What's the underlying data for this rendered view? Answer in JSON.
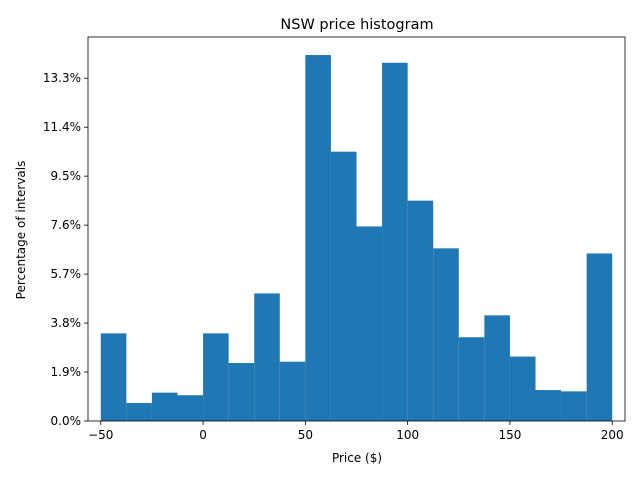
{
  "chart_data": {
    "type": "bar",
    "title": "NSW price histogram",
    "xlabel": "Price ($)",
    "ylabel": "Percentage of intervals",
    "bin_edges": [
      -50,
      -37.5,
      -25,
      -12.5,
      0,
      12.5,
      25,
      37.5,
      50,
      62.5,
      75,
      87.5,
      100,
      112.5,
      125,
      137.5,
      150,
      162.5,
      175,
      187.5,
      200
    ],
    "values": [
      3.4,
      0.7,
      1.1,
      1.0,
      3.4,
      2.25,
      4.95,
      2.3,
      14.2,
      10.45,
      7.55,
      13.9,
      8.55,
      6.7,
      3.25,
      4.1,
      2.5,
      1.2,
      1.15,
      6.5
    ],
    "xticks": [
      -50,
      0,
      50,
      100,
      150,
      200
    ],
    "xtick_labels": [
      "−50",
      "0",
      "50",
      "100",
      "150",
      "200"
    ],
    "yticks": [
      0,
      1.9,
      3.8,
      5.7,
      7.6,
      9.5,
      11.4,
      13.3
    ],
    "ytick_labels": [
      "0.0%",
      "1.9%",
      "3.8%",
      "5.7%",
      "7.6%",
      "9.5%",
      "11.4%",
      "13.3%"
    ],
    "xlim": [
      -56.25,
      206.25
    ],
    "ylim": [
      0,
      14.9
    ],
    "bar_color": "#1f77b4",
    "grid": false,
    "legend": "none"
  }
}
